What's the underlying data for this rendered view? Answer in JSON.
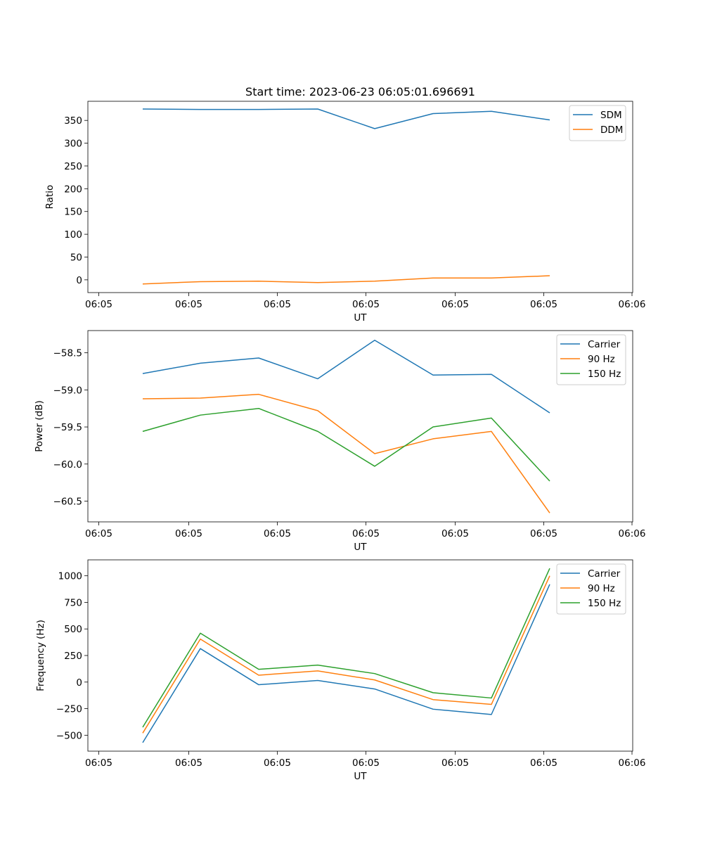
{
  "figure": {
    "title": "Start time: 2023-06-23 06:05:01.696691"
  },
  "chart_data": [
    {
      "type": "line",
      "title": "Start time: 2023-06-23 06:05:01.696691",
      "xlabel": "UT",
      "ylabel": "Ratio",
      "x_ticks": [
        "06:05",
        "06:05",
        "06:05",
        "06:05",
        "06:05",
        "06:05",
        "06:06"
      ],
      "y_ticks": [
        0,
        50,
        100,
        150,
        200,
        250,
        300,
        350
      ],
      "ylim": [
        -28,
        392
      ],
      "grid": false,
      "legend_position": "top-right",
      "series": [
        {
          "name": "SDM",
          "color": "#1f77b4",
          "values": [
            375,
            374,
            374,
            375,
            332,
            365,
            370,
            351
          ]
        },
        {
          "name": "DDM",
          "color": "#ff7f0e",
          "values": [
            -9,
            -4,
            -3,
            -6,
            -3,
            4,
            4,
            9
          ]
        }
      ]
    },
    {
      "type": "line",
      "xlabel": "UT",
      "ylabel": "Power (dB)",
      "x_ticks": [
        "06:05",
        "06:05",
        "06:05",
        "06:05",
        "06:05",
        "06:05",
        "06:06"
      ],
      "y_ticks": [
        -58.5,
        -59.0,
        -59.5,
        -60.0,
        -60.5
      ],
      "ylim": [
        -60.78,
        -58.2
      ],
      "grid": false,
      "legend_position": "top-right",
      "series": [
        {
          "name": "Carrier",
          "color": "#1f77b4",
          "values": [
            -58.78,
            -58.64,
            -58.57,
            -58.85,
            -58.33,
            -58.8,
            -58.79,
            -59.31
          ]
        },
        {
          "name": "90 Hz",
          "color": "#ff7f0e",
          "values": [
            -59.12,
            -59.11,
            -59.06,
            -59.28,
            -59.86,
            -59.66,
            -59.56,
            -60.66
          ]
        },
        {
          "name": "150 Hz",
          "color": "#2ca02c",
          "values": [
            -59.56,
            -59.34,
            -59.25,
            -59.56,
            -60.03,
            -59.5,
            -59.38,
            -60.23
          ]
        }
      ]
    },
    {
      "type": "line",
      "xlabel": "UT",
      "ylabel": "Frequency (Hz)",
      "x_ticks": [
        "06:05",
        "06:05",
        "06:05",
        "06:05",
        "06:05",
        "06:05",
        "06:06"
      ],
      "y_ticks": [
        1000,
        750,
        500,
        250,
        0,
        -250,
        -500
      ],
      "ylim": [
        -650,
        1150
      ],
      "grid": false,
      "legend_position": "top-right",
      "series": [
        {
          "name": "Carrier",
          "color": "#1f77b4",
          "values": [
            -570,
            315,
            -25,
            15,
            -65,
            -255,
            -305,
            920
          ]
        },
        {
          "name": "90 Hz",
          "color": "#ff7f0e",
          "values": [
            -480,
            405,
            65,
            105,
            20,
            -165,
            -210,
            1000
          ]
        },
        {
          "name": "150 Hz",
          "color": "#2ca02c",
          "values": [
            -425,
            460,
            120,
            160,
            80,
            -100,
            -150,
            1070
          ]
        }
      ]
    }
  ]
}
